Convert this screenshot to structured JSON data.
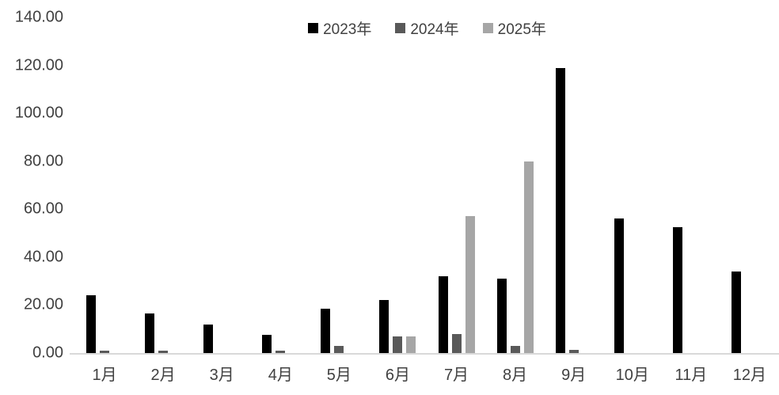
{
  "chart_data": {
    "type": "bar",
    "title": "",
    "xlabel": "",
    "ylabel": "",
    "categories": [
      "1月",
      "2月",
      "3月",
      "4月",
      "5月",
      "6月",
      "7月",
      "8月",
      "9月",
      "10月",
      "11月",
      "12月"
    ],
    "series": [
      {
        "name": "2023年",
        "color": "#000000",
        "values": [
          24,
          16.5,
          12,
          7.5,
          18.5,
          22,
          32,
          31,
          119,
          56,
          52.5,
          34
        ]
      },
      {
        "name": "2024年",
        "color": "#595959",
        "values": [
          1,
          1,
          0,
          1,
          3,
          7,
          8,
          3,
          1.5,
          0,
          0,
          0
        ]
      },
      {
        "name": "2025年",
        "color": "#a6a6a6",
        "values": [
          0,
          0,
          0,
          0,
          0,
          7,
          57,
          80,
          0,
          0,
          0,
          0
        ]
      }
    ],
    "ylim": [
      0,
      140
    ],
    "ytick_step": 20,
    "ytick_labels": [
      "0.00",
      "20.00",
      "40.00",
      "60.00",
      "80.00",
      "100.00",
      "120.00",
      "140.00"
    ],
    "grid": false,
    "legend_position": "top-center",
    "axis_line_color": "#d9d9d9",
    "text_color": "#404040",
    "background_color": "#ffffff"
  }
}
